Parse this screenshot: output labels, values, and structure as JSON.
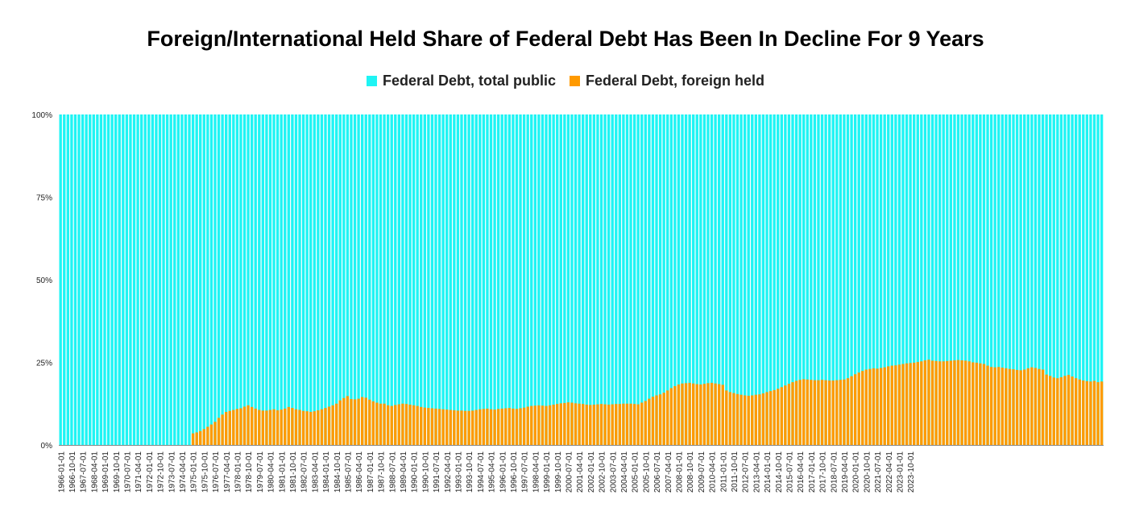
{
  "chart_data": {
    "type": "bar",
    "stacked_percent": true,
    "title": "Foreign/International Held Share of Federal Debt Has Been In Decline For 9 Years",
    "xlabel": "",
    "ylabel": "",
    "ylim": [
      0,
      100
    ],
    "y_ticks": [
      "0%",
      "25%",
      "50%",
      "75%",
      "100%"
    ],
    "legend_position": "top-center",
    "colors": {
      "total_public": "#1ff4f4",
      "foreign_held": "#ff9a00"
    },
    "x_tick_labels": [
      "1966-01-01",
      "1966-10-01",
      "1967-07-01",
      "1968-04-01",
      "1969-01-01",
      "1969-10-01",
      "1970-07-01",
      "1971-04-01",
      "1972-01-01",
      "1972-10-01",
      "1973-07-01",
      "1974-04-01",
      "1975-01-01",
      "1975-10-01",
      "1976-07-01",
      "1977-04-01",
      "1978-01-01",
      "1978-10-01",
      "1979-07-01",
      "1980-04-01",
      "1981-01-01",
      "1981-10-01",
      "1982-07-01",
      "1983-04-01",
      "1984-01-01",
      "1984-10-01",
      "1985-07-01",
      "1986-04-01",
      "1987-01-01",
      "1987-10-01",
      "1988-07-01",
      "1989-04-01",
      "1990-01-01",
      "1990-10-01",
      "1991-07-01",
      "1992-04-01",
      "1993-01-01",
      "1993-10-01",
      "1994-07-01",
      "1995-04-01",
      "1996-01-01",
      "1996-10-01",
      "1997-07-01",
      "1998-04-01",
      "1999-01-01",
      "1999-10-01",
      "2000-07-01",
      "2001-04-01",
      "2002-01-01",
      "2002-10-01",
      "2003-07-01",
      "2004-04-01",
      "2005-01-01",
      "2005-10-01",
      "2006-07-01",
      "2007-04-01",
      "2008-01-01",
      "2008-10-01",
      "2009-07-01",
      "2010-04-01",
      "2011-01-01",
      "2011-10-01",
      "2012-07-01",
      "2013-04-01",
      "2014-01-01",
      "2014-10-01",
      "2015-07-01",
      "2016-04-01",
      "2017-01-01",
      "2017-10-01",
      "2018-07-01",
      "2019-04-01",
      "2020-01-01",
      "2020-10-01",
      "2021-07-01",
      "2022-04-01",
      "2023-01-01",
      "2023-10-01"
    ],
    "series": [
      {
        "name": "Federal Debt, total public",
        "note_remainder": true
      },
      {
        "name": "Federal Debt, foreign held",
        "quarterly_start": "1966-01-01",
        "values": [
          0,
          0,
          0,
          0,
          0,
          0,
          0,
          0,
          0,
          0,
          0,
          0,
          0,
          0,
          0,
          0,
          0,
          0,
          0,
          0,
          0,
          0,
          0,
          0,
          0,
          0,
          0,
          0,
          0,
          0,
          0,
          0,
          0,
          0,
          0,
          0,
          3.5,
          3.8,
          4.2,
          4.8,
          5.5,
          6.2,
          7.0,
          8.2,
          9.2,
          10.0,
          10.3,
          10.6,
          10.9,
          11.1,
          11.6,
          12.0,
          11.5,
          11.0,
          10.6,
          10.4,
          10.4,
          10.6,
          10.8,
          10.5,
          10.7,
          11.0,
          11.5,
          11.2,
          10.8,
          10.6,
          10.3,
          10.2,
          10.0,
          10.2,
          10.5,
          10.8,
          11.2,
          11.6,
          12.0,
          12.5,
          13.5,
          14.2,
          14.8,
          13.9,
          13.8,
          14.0,
          14.5,
          14.3,
          13.7,
          13.2,
          12.8,
          12.5,
          12.5,
          12.0,
          11.8,
          12.1,
          12.3,
          12.5,
          12.4,
          12.2,
          12.0,
          11.8,
          11.5,
          11.3,
          11.2,
          11.1,
          11.0,
          10.9,
          10.8,
          10.7,
          10.6,
          10.5,
          10.4,
          10.4,
          10.3,
          10.3,
          10.4,
          10.6,
          10.8,
          10.9,
          11.0,
          10.8,
          10.7,
          10.9,
          11.0,
          11.1,
          11.2,
          11.0,
          10.9,
          11.1,
          11.3,
          11.6,
          11.8,
          11.9,
          12.0,
          11.9,
          11.8,
          12.0,
          12.2,
          12.4,
          12.6,
          12.7,
          12.9,
          12.8,
          12.6,
          12.5,
          12.4,
          12.2,
          12.1,
          12.2,
          12.3,
          12.4,
          12.3,
          12.2,
          12.3,
          12.4,
          12.4,
          12.5,
          12.5,
          12.5,
          12.4,
          12.3,
          12.8,
          13.3,
          14.0,
          14.6,
          15.0,
          15.3,
          15.8,
          16.5,
          17.2,
          17.8,
          18.3,
          18.6,
          18.7,
          18.8,
          18.6,
          18.4,
          18.3,
          18.5,
          18.7,
          18.8,
          18.6,
          18.4,
          18.2,
          16.5,
          16.0,
          15.7,
          15.4,
          15.2,
          15.0,
          14.9,
          15.0,
          15.2,
          15.3,
          15.6,
          16.0,
          16.3,
          16.6,
          17.0,
          17.5,
          18.0,
          18.5,
          19.0,
          19.4,
          19.7,
          19.9,
          19.8,
          19.7,
          19.6,
          19.6,
          19.7,
          19.6,
          19.5,
          19.5,
          19.6,
          19.7,
          19.8,
          20.2,
          20.8,
          21.4,
          21.9,
          22.4,
          22.8,
          23.0,
          23.2,
          23.1,
          23.3,
          23.5,
          23.8,
          24.0,
          24.1,
          24.3,
          24.5,
          24.7,
          24.8,
          24.9,
          25.1,
          25.3,
          25.6,
          25.8,
          25.5,
          25.4,
          25.3,
          25.3,
          25.4,
          25.5,
          25.6,
          25.7,
          25.6,
          25.5,
          25.3,
          25.0,
          24.9,
          24.7,
          24.5,
          24.0,
          23.6,
          23.5,
          23.6,
          23.4,
          23.2,
          23.0,
          22.9,
          22.7,
          22.6,
          22.8,
          23.2,
          23.5,
          23.3,
          23.0,
          22.8,
          21.3,
          20.9,
          20.4,
          20.2,
          20.5,
          20.9,
          21.2,
          20.7,
          20.2,
          19.8,
          19.5,
          19.3,
          19.2,
          19.4,
          19.0,
          19.2
        ]
      }
    ]
  }
}
